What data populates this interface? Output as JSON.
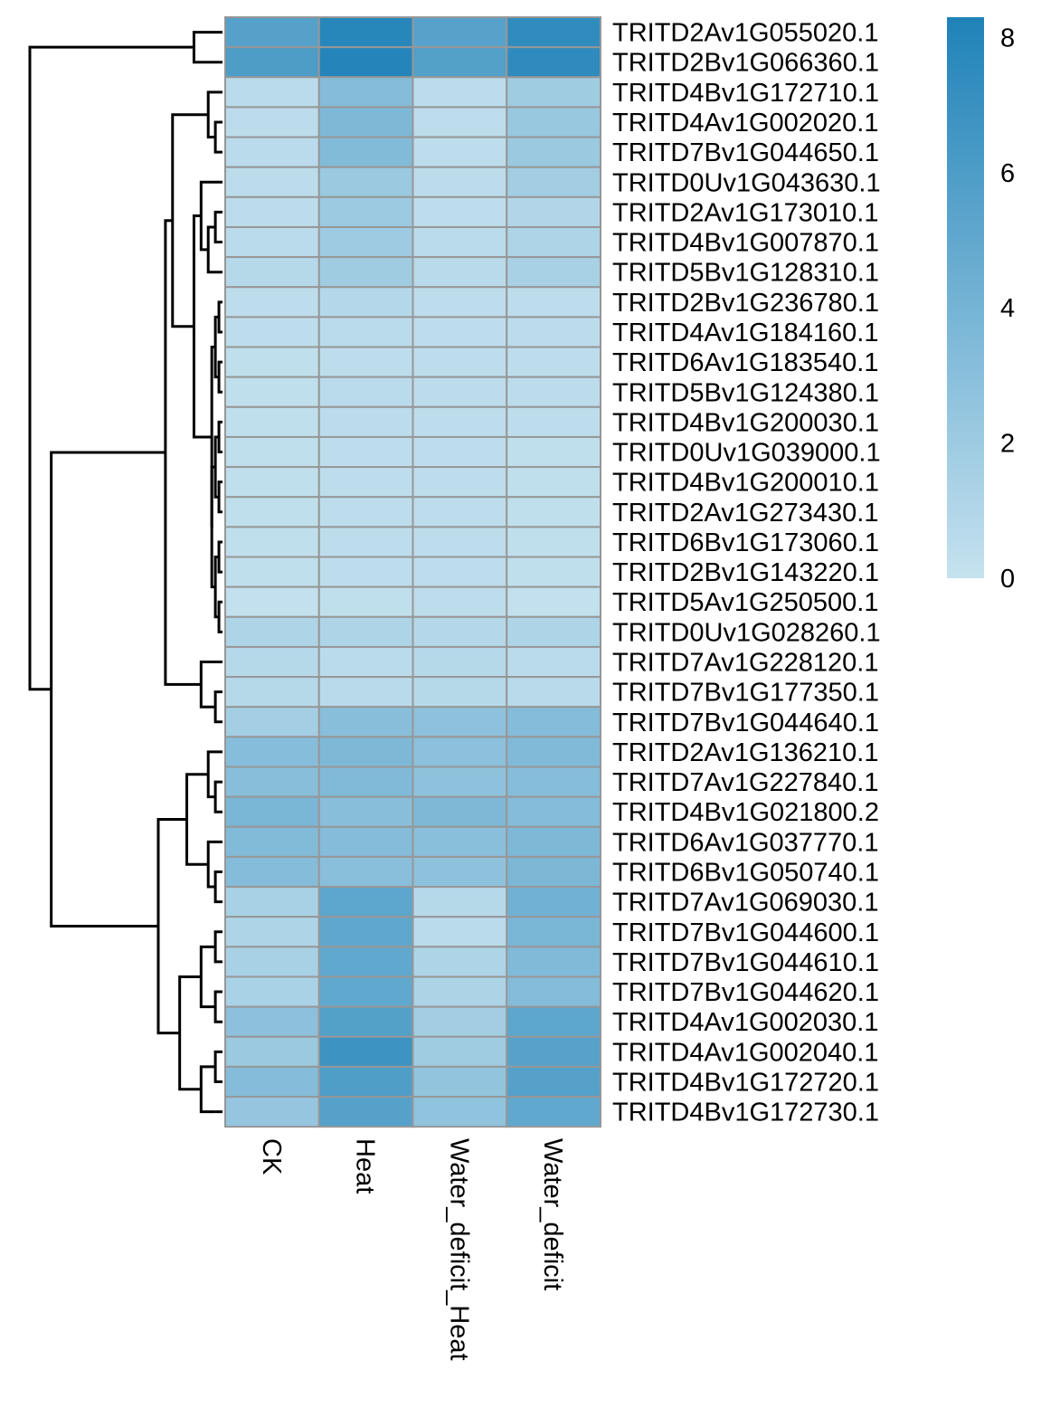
{
  "chart_data": {
    "type": "heatmap",
    "title": "",
    "columns": [
      "CK",
      "Heat",
      "Water_deficit_Heat",
      "Water_deficit"
    ],
    "rows": [
      "TRITD2Av1G055020.1",
      "TRITD2Bv1G066360.1",
      "TRITD4Bv1G172710.1",
      "TRITD4Av1G002020.1",
      "TRITD7Bv1G044650.1",
      "TRITD0Uv1G043630.1",
      "TRITD2Av1G173010.1",
      "TRITD4Bv1G007870.1",
      "TRITD5Bv1G128310.1",
      "TRITD2Bv1G236780.1",
      "TRITD4Av1G184160.1",
      "TRITD6Av1G183540.1",
      "TRITD5Bv1G124380.1",
      "TRITD4Bv1G200030.1",
      "TRITD0Uv1G039000.1",
      "TRITD4Bv1G200010.1",
      "TRITD2Av1G273430.1",
      "TRITD6Bv1G173060.1",
      "TRITD2Bv1G143220.1",
      "TRITD5Av1G250500.1",
      "TRITD0Uv1G028260.1",
      "TRITD7Av1G228120.1",
      "TRITD7Bv1G177350.1",
      "TRITD7Bv1G044640.1",
      "TRITD2Av1G136210.1",
      "TRITD7Av1G227840.1",
      "TRITD4Bv1G021800.2",
      "TRITD6Av1G037770.1",
      "TRITD6Bv1G050740.1",
      "TRITD7Av1G069030.1",
      "TRITD7Bv1G044600.1",
      "TRITD7Bv1G044610.1",
      "TRITD7Bv1G044620.1",
      "TRITD4Av1G002030.1",
      "TRITD4Av1G002040.1",
      "TRITD4Bv1G172720.1",
      "TRITD4Bv1G172730.1"
    ],
    "values": [
      [
        5.6,
        7.9,
        5.5,
        7.4
      ],
      [
        6.0,
        8.0,
        5.7,
        7.5
      ],
      [
        0.6,
        3.3,
        0.5,
        1.9
      ],
      [
        0.5,
        3.6,
        0.4,
        2.3
      ],
      [
        0.6,
        3.4,
        0.4,
        2.2
      ],
      [
        0.5,
        2.2,
        0.5,
        1.8
      ],
      [
        0.5,
        2.1,
        0.4,
        1.0
      ],
      [
        0.6,
        2.0,
        0.6,
        1.2
      ],
      [
        0.8,
        1.9,
        0.7,
        1.5
      ],
      [
        0.4,
        0.9,
        0.4,
        0.4
      ],
      [
        0.4,
        0.6,
        0.4,
        0.5
      ],
      [
        0.3,
        0.4,
        0.4,
        0.4
      ],
      [
        0.3,
        0.6,
        0.5,
        0.5
      ],
      [
        0.3,
        0.5,
        0.4,
        0.4
      ],
      [
        0.3,
        0.4,
        0.4,
        0.3
      ],
      [
        0.3,
        0.4,
        0.4,
        0.3
      ],
      [
        0.3,
        0.4,
        0.4,
        0.3
      ],
      [
        0.3,
        0.4,
        0.4,
        0.3
      ],
      [
        0.3,
        0.4,
        0.4,
        0.3
      ],
      [
        0.2,
        0.3,
        0.4,
        0.2
      ],
      [
        1.2,
        1.2,
        0.9,
        1.2
      ],
      [
        0.8,
        0.6,
        0.8,
        0.6
      ],
      [
        0.8,
        0.7,
        0.8,
        0.7
      ],
      [
        1.7,
        3.1,
        2.8,
        3.3
      ],
      [
        3.2,
        3.6,
        2.9,
        3.5
      ],
      [
        3.1,
        3.5,
        2.8,
        3.2
      ],
      [
        3.8,
        3.1,
        3.6,
        3.3
      ],
      [
        3.4,
        3.3,
        3.0,
        3.6
      ],
      [
        3.3,
        3.0,
        2.8,
        3.7
      ],
      [
        1.5,
        5.2,
        0.8,
        4.2
      ],
      [
        1.2,
        5.1,
        0.6,
        3.8
      ],
      [
        1.5,
        5.0,
        1.2,
        3.5
      ],
      [
        1.4,
        5.0,
        1.3,
        3.3
      ],
      [
        2.9,
        5.7,
        1.8,
        5.2
      ],
      [
        2.2,
        6.8,
        1.9,
        5.5
      ],
      [
        3.3,
        5.9,
        2.6,
        5.6
      ],
      [
        2.4,
        5.6,
        2.7,
        5.0
      ]
    ],
    "color_min": 0,
    "color_max": 8.3,
    "color_low": "#c6e2ef",
    "color_high": "#1f82b8",
    "cell_border_color": "#979797",
    "legend_ticks": [
      0,
      2,
      4,
      6,
      8
    ],
    "legend_position": "top-right",
    "row_dendrogram": "left",
    "column_label_orientation": "vertical"
  }
}
